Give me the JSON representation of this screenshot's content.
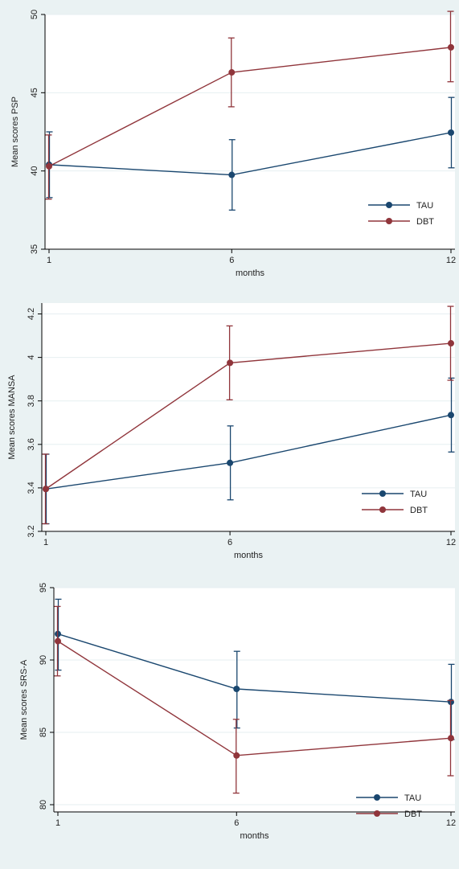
{
  "colors": {
    "background": "#eaf2f3",
    "plot_background": "#ffffff",
    "grid": "#e6eff1",
    "axis": "#000000",
    "tau": "#1a476f",
    "dbt": "#90353b"
  },
  "chart_data": [
    {
      "type": "line",
      "title": "",
      "xlabel": "months",
      "ylabel": "Mean scores PSP",
      "x": [
        1,
        6,
        12
      ],
      "x_ticks": [
        1,
        6,
        12
      ],
      "x_tick_labels": [
        "1",
        "6",
        "12"
      ],
      "ylim": [
        35,
        50
      ],
      "y_ticks": [
        35,
        40,
        45,
        50
      ],
      "y_tick_labels": [
        "35",
        "40",
        "45",
        "50"
      ],
      "grid": true,
      "legend_position": "bottom-right",
      "series": [
        {
          "name": "TAU",
          "color": "#1a476f",
          "values": [
            40.4,
            39.75,
            42.45
          ],
          "lower": [
            38.3,
            37.5,
            40.2
          ],
          "upper": [
            42.5,
            42.0,
            44.7
          ]
        },
        {
          "name": "DBT",
          "color": "#90353b",
          "values": [
            40.3,
            46.3,
            47.9
          ],
          "lower": [
            38.2,
            44.1,
            45.7
          ],
          "upper": [
            42.3,
            48.5,
            50.2
          ]
        }
      ]
    },
    {
      "type": "line",
      "title": "",
      "xlabel": "months",
      "ylabel": "Mean scores MANSA",
      "x": [
        1,
        6,
        12
      ],
      "x_ticks": [
        1,
        6,
        12
      ],
      "x_tick_labels": [
        "1",
        "6",
        "12"
      ],
      "ylim": [
        3.2,
        4.25
      ],
      "y_ticks": [
        3.2,
        3.4,
        3.6,
        3.8,
        4.0,
        4.2
      ],
      "y_tick_labels": [
        "3.2",
        "3.4",
        "3.6",
        "3.8",
        "4",
        "4.2"
      ],
      "grid": true,
      "legend_position": "bottom-right",
      "series": [
        {
          "name": "TAU",
          "color": "#1a476f",
          "values": [
            3.395,
            3.515,
            3.735
          ],
          "lower": [
            3.235,
            3.345,
            3.565
          ],
          "upper": [
            3.555,
            3.685,
            3.905
          ]
        },
        {
          "name": "DBT",
          "color": "#90353b",
          "values": [
            3.395,
            3.975,
            4.065
          ],
          "lower": [
            3.235,
            3.805,
            3.895
          ],
          "upper": [
            3.555,
            4.145,
            4.235
          ]
        }
      ]
    },
    {
      "type": "line",
      "title": "",
      "xlabel": "months",
      "ylabel": "Mean scores SRS-A",
      "x": [
        1,
        6,
        12
      ],
      "x_ticks": [
        1,
        6,
        12
      ],
      "x_tick_labels": [
        "1",
        "6",
        "12"
      ],
      "ylim": [
        79.5,
        95
      ],
      "y_ticks": [
        80,
        85,
        90,
        95
      ],
      "y_tick_labels": [
        "80",
        "85",
        "90",
        "95"
      ],
      "grid": true,
      "legend_position": "bottom-right",
      "series": [
        {
          "name": "TAU",
          "color": "#1a476f",
          "values": [
            91.8,
            88.0,
            87.1
          ],
          "lower": [
            89.3,
            85.3,
            84.5
          ],
          "upper": [
            94.2,
            90.6,
            89.7
          ]
        },
        {
          "name": "DBT",
          "color": "#90353b",
          "values": [
            91.3,
            83.4,
            84.6
          ],
          "lower": [
            88.9,
            80.8,
            82.0
          ],
          "upper": [
            93.7,
            85.9,
            87.2
          ]
        }
      ]
    }
  ]
}
